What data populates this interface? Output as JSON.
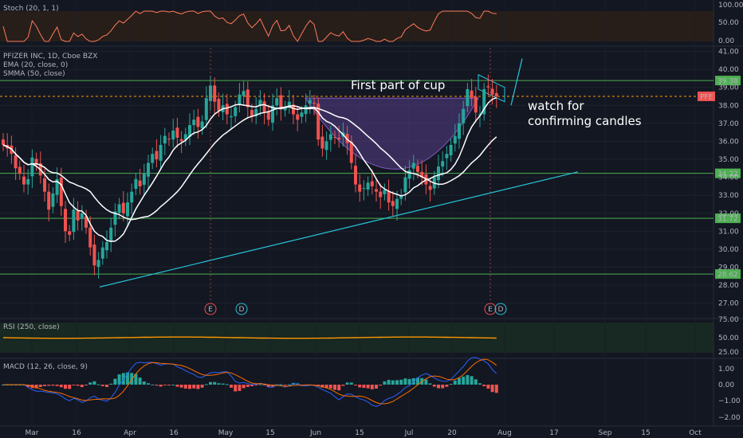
{
  "chart_data": {
    "type": "candlestick",
    "symbol_title": "PFIZER INC, 1D, Cboe BZX",
    "symbol_tag": "PFE",
    "indicators": {
      "stoch": {
        "label": "Stoch (20, 1, 1)",
        "ticks": [
          "100.00",
          "50.00",
          "0.00"
        ]
      },
      "ema": {
        "label": "EMA (20, close, 0)"
      },
      "smma": {
        "label": "SMMA (50, close)"
      },
      "rsi": {
        "label": "RSI (250, close)",
        "ticks": [
          "75.00",
          "50.00",
          "25.00"
        ]
      },
      "macd": {
        "label": "MACD (12, 26, close, 9)",
        "ticks": [
          "1.00",
          "0.00",
          "−1.00",
          "−2.00"
        ]
      }
    },
    "price_axis": [
      "41.00",
      "40.00",
      "39.00",
      "38.00",
      "37.00",
      "36.00",
      "35.00",
      "34.00",
      "33.00",
      "32.00",
      "31.00",
      "30.00",
      "29.00",
      "28.00",
      "27.00"
    ],
    "ylim": [
      26.5,
      41.2
    ],
    "x_labels": [
      "Mar",
      "16",
      "Apr",
      "16",
      "May",
      "15",
      "Jun",
      "15",
      "Jul",
      "20",
      "Aug",
      "17",
      "Sep",
      "15",
      "Oct"
    ],
    "horizontal_levels": [
      {
        "value": 39.38,
        "label": "39.38"
      },
      {
        "value": 34.22,
        "label": "34.22"
      },
      {
        "value": 31.72,
        "label": "31.72"
      },
      {
        "value": 28.62,
        "label": "28.62"
      }
    ],
    "current_price_tag": "PFE",
    "current_price": 38.5,
    "annotations": [
      "First part of cup",
      "watch for",
      "confirming candles"
    ],
    "event_markers": [
      "E",
      "D",
      "E",
      "D"
    ],
    "price_series": [
      35.8,
      35.6,
      35.3,
      34.5,
      34.2,
      33.6,
      33.9,
      35.1,
      34.7,
      34.1,
      33.2,
      32.2,
      33.1,
      33.9,
      32.4,
      31.0,
      30.8,
      32.2,
      31.6,
      32.0,
      31.2,
      30.1,
      29.1,
      29.4,
      30.1,
      30.4,
      31.2,
      32.1,
      32.5,
      32.0,
      32.6,
      33.2,
      33.9,
      33.5,
      34.2,
      34.8,
      35.3,
      35.0,
      35.8,
      36.3,
      36.1,
      36.6,
      36.2,
      36.0,
      36.4,
      36.9,
      37.2,
      36.8,
      37.1,
      38.4,
      39.1,
      38.2,
      37.7,
      38.0,
      37.5,
      37.4,
      37.9,
      38.6,
      38.8,
      37.9,
      37.4,
      37.8,
      38.3,
      37.6,
      37.2,
      38.0,
      38.4,
      37.8,
      37.9,
      38.2,
      37.5,
      37.2,
      37.6,
      38.0,
      38.3,
      38.1,
      36.1,
      35.6,
      36.0,
      36.4,
      36.2,
      36.1,
      36.5,
      35.9,
      34.8,
      33.6,
      33.2,
      33.4,
      33.7,
      33.5,
      33.2,
      32.9,
      33.3,
      32.6,
      32.4,
      32.8,
      33.0,
      34.0,
      34.4,
      34.8,
      34.3,
      34.0,
      33.6,
      33.3,
      34.0,
      34.6,
      34.9,
      35.3,
      35.8,
      36.3,
      37.0,
      37.8,
      38.9,
      38.4,
      37.6,
      37.5,
      38.9,
      39.0,
      38.6,
      38.5
    ],
    "candle_colors": {
      "up": "#26a69a",
      "down": "#ef5350"
    },
    "line_colors": {
      "ema": "#ffffff",
      "smma": "#ffffff",
      "stoch": "#ff7a5a",
      "rsi": "#ff9800",
      "macd": "#2962ff",
      "signal": "#ff6d00",
      "support_lines": "#4caf50",
      "trendline": "#26c6da",
      "cup": "#7e57c2"
    }
  }
}
